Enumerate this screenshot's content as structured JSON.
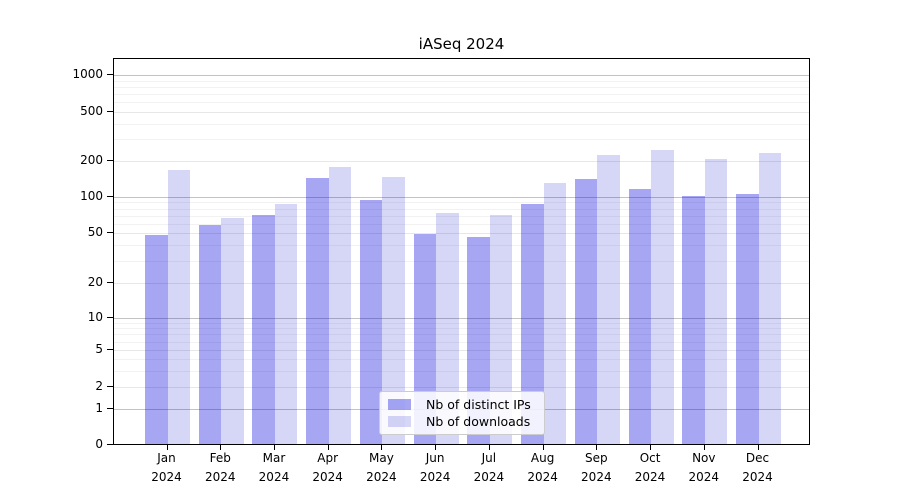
{
  "title": "iASeq 2024",
  "chart_data": {
    "type": "bar",
    "title": "iASeq 2024",
    "scale": "symlog",
    "grid": true,
    "months": [
      "Jan",
      "Feb",
      "Mar",
      "Apr",
      "May",
      "Jun",
      "Jul",
      "Aug",
      "Sep",
      "Oct",
      "Nov",
      "Dec"
    ],
    "year": "2024",
    "categories": [
      "Jan 2024",
      "Feb 2024",
      "Mar 2024",
      "Apr 2024",
      "May 2024",
      "Jun 2024",
      "Jul 2024",
      "Aug 2024",
      "Sep 2024",
      "Oct 2024",
      "Nov 2024",
      "Dec 2024"
    ],
    "series": [
      {
        "name": "Nb of distinct IPs",
        "color": "rgba(0,0,221,0.35)",
        "values": [
          47,
          57,
          69,
          142,
          93,
          48,
          46,
          86,
          139,
          115,
          100,
          103
        ]
      },
      {
        "name": "Nb of downloads",
        "color": "rgba(0,0,200,0.16)",
        "values": [
          165,
          65,
          85,
          175,
          145,
          72,
          69,
          128,
          220,
          240,
          205,
          230
        ]
      }
    ],
    "yticks": [
      0,
      1,
      2,
      5,
      10,
      20,
      50,
      100,
      200,
      500,
      1000
    ],
    "ylim": [
      0,
      1300
    ],
    "legend_position": "lower center",
    "spine_color": "#000000",
    "major_grid_color": "#c3c3c3",
    "minor_grid_color": "#f2f2f2"
  }
}
